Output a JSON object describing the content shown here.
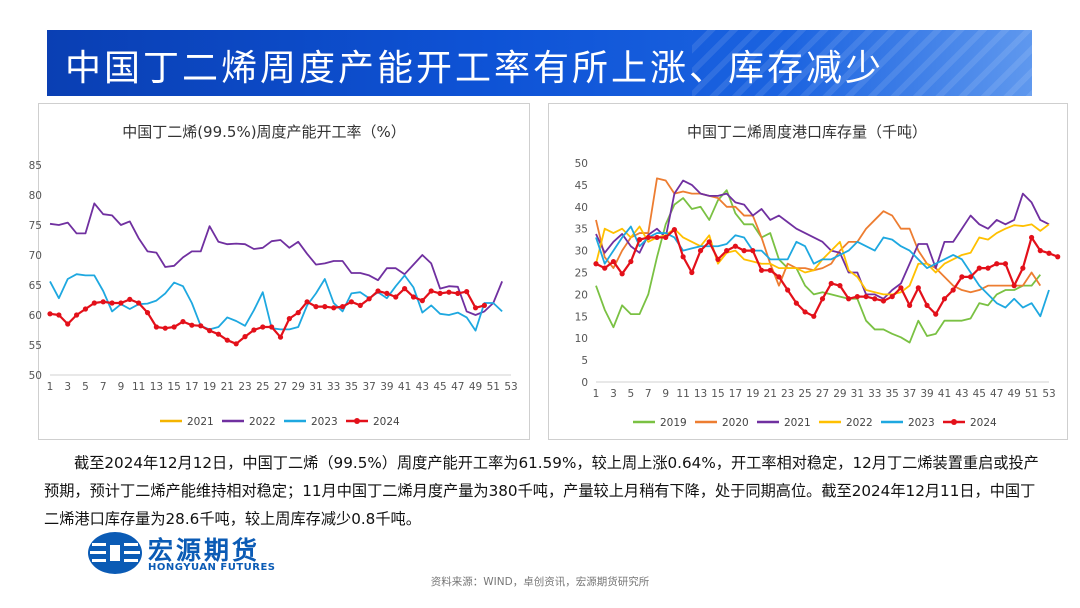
{
  "banner": {
    "title": "中国丁二烯周度产能开工率有所上涨、库存减少"
  },
  "paragraph": "截至2024年12月12日，中国丁二烯（99.5%）周度产能开工率为61.59%，较上周上涨0.64%，开工率相对稳定，12月丁二烯装置重启或投产预期，预计丁二烯产能维持相对稳定；11月中国丁二烯月度产量为380千吨，产量较上月稍有下降，处于同期高位。截至2024年12月11日，中国丁二烯港口库存量为28.6千吨，较上周库存减少0.8千吨。",
  "logo": {
    "cn": "宏源期货",
    "en": "HONGYUAN FUTURES"
  },
  "source": "资料来源：WIND，卓创资讯，宏源期货研究所",
  "chart_data": [
    {
      "type": "line",
      "title": "中国丁二烯(99.5%)周度产能开工率（%）",
      "xlabel": "",
      "ylabel": "",
      "xlim": [
        1,
        53
      ],
      "ylim": [
        50,
        85
      ],
      "x_ticks": [
        1,
        3,
        5,
        7,
        9,
        11,
        13,
        15,
        17,
        19,
        21,
        23,
        25,
        27,
        29,
        31,
        33,
        35,
        37,
        39,
        41,
        43,
        45,
        47,
        49,
        51,
        53
      ],
      "y_ticks": [
        50,
        55,
        60,
        65,
        70,
        75,
        80,
        85
      ],
      "grid": false,
      "legend": "bottom",
      "series": [
        {
          "name": "2021",
          "color": "#f4b400",
          "marker": false,
          "values": []
        },
        {
          "name": "2022",
          "color": "#7030a0",
          "marker": false,
          "values": [
            75.2,
            75.0,
            75.4,
            73.6,
            73.6,
            78.6,
            76.8,
            76.6,
            75.0,
            75.6,
            72.8,
            70.6,
            70.4,
            68.0,
            68.2,
            69.6,
            70.6,
            70.6,
            74.8,
            72.2,
            71.8,
            71.9,
            71.8,
            71.0,
            71.2,
            72.3,
            72.5,
            71.2,
            72.2,
            70.2,
            68.4,
            68.6,
            69.0,
            69.0,
            67.0,
            67.0,
            66.6,
            65.8,
            67.8,
            67.8,
            66.8,
            68.4,
            70.0,
            68.6,
            64.4,
            64.8,
            64.7,
            60.6,
            60.0,
            60.6,
            62.0,
            65.6
          ]
        },
        {
          "name": "2023",
          "color": "#1ea8e0",
          "marker": false,
          "values": [
            65.6,
            62.8,
            66.0,
            66.8,
            66.6,
            66.6,
            64.0,
            60.6,
            61.8,
            61.0,
            61.8,
            61.9,
            62.4,
            63.6,
            65.4,
            64.8,
            62.0,
            58.2,
            57.6,
            58.0,
            59.6,
            59.0,
            58.2,
            60.8,
            63.8,
            57.8,
            57.6,
            57.6,
            58.0,
            61.6,
            63.6,
            66.0,
            62.0,
            60.6,
            63.6,
            63.8,
            62.8,
            63.8,
            62.8,
            64.8,
            66.6,
            64.6,
            60.4,
            61.6,
            60.2,
            60.0,
            60.4,
            59.6,
            57.4,
            62.0,
            62.0,
            60.6
          ]
        },
        {
          "name": "2024",
          "color": "#e3101a",
          "marker": true,
          "values": [
            60.2,
            60.0,
            58.5,
            60.0,
            61.0,
            62.0,
            62.2,
            62.0,
            62.0,
            62.6,
            62.0,
            60.4,
            58.0,
            57.8,
            58.0,
            58.9,
            58.3,
            58.2,
            57.4,
            56.8,
            55.8,
            55.2,
            56.4,
            57.5,
            58.0,
            58.0,
            56.3,
            59.4,
            60.4,
            62.2,
            61.4,
            61.4,
            61.2,
            61.4,
            62.2,
            61.6,
            62.7,
            64.0,
            63.6,
            63.0,
            64.4,
            63.0,
            62.4,
            64.0,
            63.6,
            63.8,
            63.6,
            63.9,
            61.2,
            61.6
          ]
        }
      ]
    },
    {
      "type": "line",
      "title": "中国丁二烯周度港口库存量（千吨）",
      "xlabel": "",
      "ylabel": "",
      "xlim": [
        1,
        53
      ],
      "ylim": [
        0,
        50
      ],
      "x_ticks": [
        1,
        3,
        5,
        7,
        9,
        11,
        13,
        15,
        17,
        19,
        21,
        23,
        25,
        27,
        29,
        31,
        33,
        35,
        37,
        39,
        41,
        43,
        45,
        47,
        49,
        51,
        53
      ],
      "y_ticks": [
        0,
        5,
        10,
        15,
        20,
        25,
        30,
        35,
        40,
        45,
        50
      ],
      "grid": false,
      "legend": "bottom",
      "series": [
        {
          "name": "2019",
          "color": "#7ac143",
          "marker": false,
          "values": [
            22,
            16.5,
            12.5,
            17.5,
            15.5,
            15.5,
            20,
            28.5,
            36,
            40.5,
            42,
            39.5,
            40,
            37,
            41.5,
            43.8,
            38.5,
            36,
            36,
            33,
            34,
            28,
            26,
            26,
            22,
            20,
            20.5,
            20,
            19.5,
            19,
            19,
            14,
            12,
            12,
            11,
            10.2,
            9,
            14,
            10.5,
            11,
            14,
            14,
            14,
            14.5,
            18,
            17.5,
            20,
            21,
            21,
            22,
            22,
            24.5
          ]
        },
        {
          "name": "2020",
          "color": "#ed7d31",
          "marker": false,
          "values": [
            37,
            28.5,
            26,
            30,
            33,
            34,
            34,
            46.5,
            46,
            43,
            43.5,
            43,
            43,
            42.5,
            42,
            40,
            40,
            38,
            38,
            33,
            27,
            22,
            27,
            26,
            26,
            25.5,
            26,
            27,
            30,
            32,
            32,
            35,
            37,
            39,
            38,
            35,
            35,
            30,
            27,
            26,
            24,
            22,
            21,
            20.5,
            21,
            22,
            22,
            22,
            22,
            22,
            25,
            22
          ]
        },
        {
          "name": "2021",
          "color": "#7030a0",
          "marker": false,
          "values": [
            33.8,
            29.5,
            32,
            33.8,
            31,
            29.5,
            33.6,
            35,
            33,
            43,
            46,
            45,
            43,
            42.5,
            42.5,
            43,
            41,
            40.5,
            38,
            39.5,
            37,
            38,
            36.5,
            35,
            34,
            33,
            32,
            30,
            29.5,
            25,
            25,
            20,
            20,
            19,
            21,
            22.5,
            27,
            31.5,
            31.5,
            26,
            32,
            32,
            35,
            38,
            36,
            35,
            37,
            36,
            37,
            43,
            41,
            37,
            36
          ]
        },
        {
          "name": "2022",
          "color": "#ffc000",
          "marker": false,
          "values": [
            27,
            35,
            34,
            35,
            33,
            35.5,
            32,
            33,
            33.5,
            35,
            33,
            32,
            31,
            33.5,
            27,
            29.5,
            30,
            28,
            27.5,
            27,
            27,
            26,
            26,
            26,
            25,
            25.5,
            28,
            30,
            32,
            25.5,
            24,
            21,
            20.5,
            20,
            20,
            20.5,
            22,
            27,
            27,
            25,
            27,
            28,
            29,
            29.5,
            33,
            32.5,
            34,
            35,
            35.8,
            35.6,
            36,
            34.5,
            36
          ]
        },
        {
          "name": "2023",
          "color": "#1ea8e0",
          "marker": false,
          "values": [
            33,
            27,
            30,
            33,
            35.5,
            31,
            33,
            34,
            34,
            33,
            30,
            30.5,
            31,
            31,
            31,
            31.5,
            33.5,
            33,
            30,
            30,
            28,
            28,
            28,
            32,
            31,
            27,
            28,
            28,
            29,
            30,
            32,
            31,
            30,
            33,
            32.5,
            31,
            30,
            28,
            26,
            27,
            28,
            29,
            28,
            25,
            22,
            20,
            18,
            17,
            19,
            17,
            18,
            15,
            21
          ]
        },
        {
          "name": "2024",
          "color": "#e3101a",
          "marker": true,
          "values": [
            27,
            26,
            27.5,
            24.7,
            27.5,
            32.5,
            33,
            33,
            33,
            34.8,
            28.6,
            25,
            30,
            32,
            28,
            30,
            31,
            30,
            30,
            25.5,
            25.5,
            24,
            21,
            18,
            16,
            15,
            19,
            22.5,
            22,
            19,
            19.5,
            19.5,
            19,
            18.5,
            19.5,
            21.5,
            17.5,
            21.5,
            17.5,
            15.5,
            19,
            21,
            24,
            24,
            26,
            26,
            27,
            27,
            22,
            26,
            33,
            30,
            29.4,
            28.6
          ]
        }
      ]
    }
  ]
}
